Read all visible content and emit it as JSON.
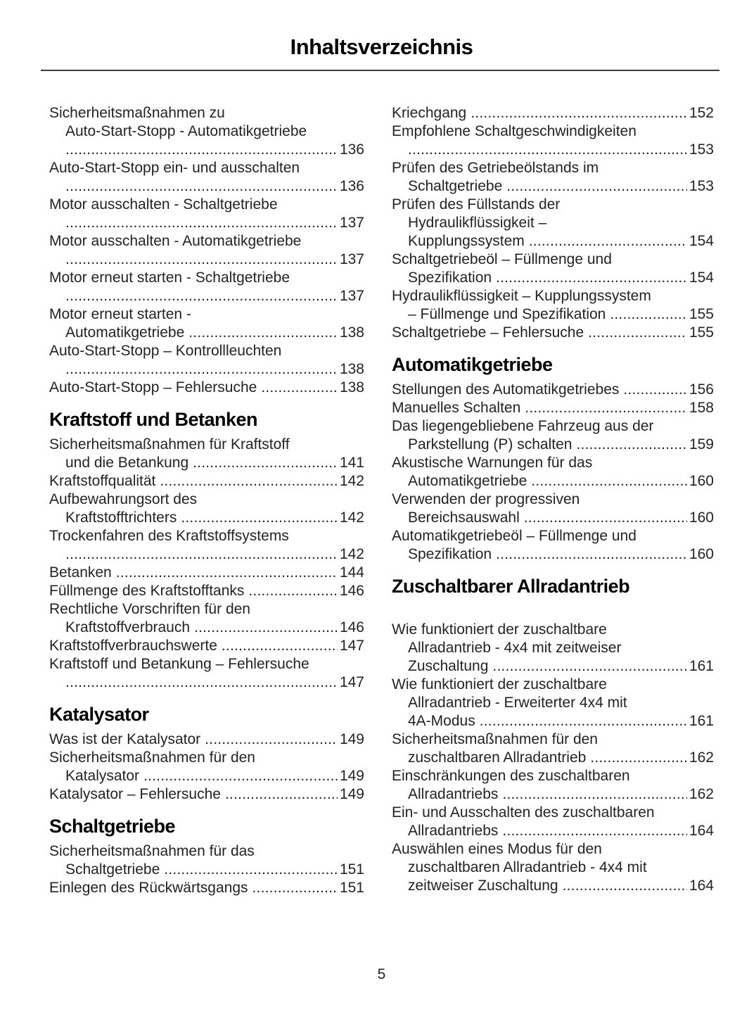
{
  "header": {
    "title": "Inhaltsverzeichnis"
  },
  "footer": {
    "page_number": "5"
  },
  "colors": {
    "text": "#232323",
    "heading": "#000000",
    "rule": "#3c3c3c",
    "background": "#ffffff"
  },
  "toc": {
    "columns": [
      {
        "blocks": [
          {
            "type": "entry",
            "lines": [
              "Sicherheitsmaßnahmen zu",
              "Auto-Start-Stopp - Automatikgetriebe",
              ""
            ],
            "page": "136"
          },
          {
            "type": "entry",
            "lines": [
              "Auto-Start-Stopp ein- und ausschalten",
              ""
            ],
            "page": "136"
          },
          {
            "type": "entry",
            "lines": [
              "Motor ausschalten - Schaltgetriebe",
              ""
            ],
            "page": "137"
          },
          {
            "type": "entry",
            "lines": [
              "Motor ausschalten - Automatikgetriebe",
              ""
            ],
            "page": "137"
          },
          {
            "type": "entry",
            "lines": [
              "Motor erneut starten - Schaltgetriebe",
              ""
            ],
            "page": "137"
          },
          {
            "type": "entry",
            "lines": [
              "Motor erneut starten -",
              "Automatikgetriebe"
            ],
            "page": "138"
          },
          {
            "type": "entry",
            "lines": [
              "Auto-Start-Stopp – Kontrollleuchten",
              ""
            ],
            "page": "138"
          },
          {
            "type": "entry",
            "lines": [
              "Auto-Start-Stopp – Fehlersuche"
            ],
            "page": "138"
          },
          {
            "type": "heading",
            "text": "Kraftstoff und Betanken"
          },
          {
            "type": "entry",
            "lines": [
              "Sicherheitsmaßnahmen für Kraftstoff",
              "und die Betankung"
            ],
            "page": "141"
          },
          {
            "type": "entry",
            "lines": [
              "Kraftstoffqualität"
            ],
            "page": "142"
          },
          {
            "type": "entry",
            "lines": [
              "Aufbewahrungsort des",
              "Kraftstofftrichters"
            ],
            "page": "142"
          },
          {
            "type": "entry",
            "lines": [
              "Trockenfahren des Kraftstoffsystems",
              ""
            ],
            "page": "142"
          },
          {
            "type": "entry",
            "lines": [
              "Betanken"
            ],
            "page": "144"
          },
          {
            "type": "entry",
            "lines": [
              "Füllmenge des Kraftstofftanks"
            ],
            "page": "146"
          },
          {
            "type": "entry",
            "lines": [
              "Rechtliche Vorschriften für den",
              "Kraftstoffverbrauch"
            ],
            "page": "146"
          },
          {
            "type": "entry",
            "lines": [
              "Kraftstoffverbrauchswerte"
            ],
            "page": "147"
          },
          {
            "type": "entry",
            "lines": [
              "Kraftstoff und Betankung – Fehlersuche",
              ""
            ],
            "page": "147"
          },
          {
            "type": "heading",
            "text": "Katalysator"
          },
          {
            "type": "entry",
            "lines": [
              "Was ist der Katalysator"
            ],
            "page": "149"
          },
          {
            "type": "entry",
            "lines": [
              "Sicherheitsmaßnahmen für den",
              "Katalysator"
            ],
            "page": "149"
          },
          {
            "type": "entry",
            "lines": [
              "Katalysator – Fehlersuche"
            ],
            "page": "149"
          },
          {
            "type": "heading",
            "text": "Schaltgetriebe"
          },
          {
            "type": "entry",
            "lines": [
              "Sicherheitsmaßnahmen für das",
              "Schaltgetriebe"
            ],
            "page": "151"
          },
          {
            "type": "entry",
            "lines": [
              "Einlegen des Rückwärtsgangs"
            ],
            "page": "151"
          }
        ]
      },
      {
        "blocks": [
          {
            "type": "entry",
            "lines": [
              "Kriechgang"
            ],
            "page": "152"
          },
          {
            "type": "entry",
            "lines": [
              "Empfohlene Schaltgeschwindigkeiten",
              ""
            ],
            "page": "153"
          },
          {
            "type": "entry",
            "lines": [
              "Prüfen des Getriebeölstands im",
              "Schaltgetriebe"
            ],
            "page": "153"
          },
          {
            "type": "entry",
            "lines": [
              "Prüfen des Füllstands der",
              "Hydraulikflüssigkeit –",
              "Kupplungssystem"
            ],
            "page": "154"
          },
          {
            "type": "entry",
            "lines": [
              "Schaltgetriebeöl – Füllmenge und",
              "Spezifikation"
            ],
            "page": "154"
          },
          {
            "type": "entry",
            "lines": [
              "Hydraulikflüssigkeit – Kupplungssystem",
              "– Füllmenge und Spezifikation"
            ],
            "page": "155"
          },
          {
            "type": "entry",
            "lines": [
              "Schaltgetriebe – Fehlersuche"
            ],
            "page": "155"
          },
          {
            "type": "heading",
            "text": "Automatikgetriebe"
          },
          {
            "type": "entry",
            "lines": [
              "Stellungen des Automatikgetriebes"
            ],
            "page": "156"
          },
          {
            "type": "entry",
            "lines": [
              "Manuelles Schalten"
            ],
            "page": "158"
          },
          {
            "type": "entry",
            "lines": [
              "Das liegengebliebene Fahrzeug aus der",
              "Parkstellung (P) schalten"
            ],
            "page": "159"
          },
          {
            "type": "entry",
            "lines": [
              "Akustische Warnungen für das",
              "Automatikgetriebe"
            ],
            "page": "160"
          },
          {
            "type": "entry",
            "lines": [
              "Verwenden der progressiven",
              "Bereichsauswahl"
            ],
            "page": "160"
          },
          {
            "type": "entry",
            "lines": [
              "Automatikgetriebeöl – Füllmenge und",
              "Spezifikation"
            ],
            "page": "160"
          },
          {
            "type": "heading",
            "text": "Zuschaltbarer Allradantrieb",
            "space_after": true
          },
          {
            "type": "entry",
            "lines": [
              "Wie funktioniert der zuschaltbare",
              "Allradantrieb - 4x4 mit zeitweiser",
              "Zuschaltung"
            ],
            "page": "161"
          },
          {
            "type": "entry",
            "lines": [
              "Wie funktioniert der zuschaltbare",
              "Allradantrieb - Erweiterter 4x4 mit",
              "4A-Modus"
            ],
            "page": "161"
          },
          {
            "type": "entry",
            "lines": [
              "Sicherheitsmaßnahmen für den",
              "zuschaltbaren Allradantrieb"
            ],
            "page": "162"
          },
          {
            "type": "entry",
            "lines": [
              "Einschränkungen des zuschaltbaren",
              "Allradantriebs"
            ],
            "page": "162"
          },
          {
            "type": "entry",
            "lines": [
              "Ein- und Ausschalten des zuschaltbaren",
              "Allradantriebs"
            ],
            "page": "164"
          },
          {
            "type": "entry",
            "lines": [
              "Auswählen eines Modus für den",
              "zuschaltbaren Allradantrieb - 4x4 mit",
              "zeitweiser Zuschaltung"
            ],
            "page": "164"
          }
        ]
      }
    ]
  }
}
